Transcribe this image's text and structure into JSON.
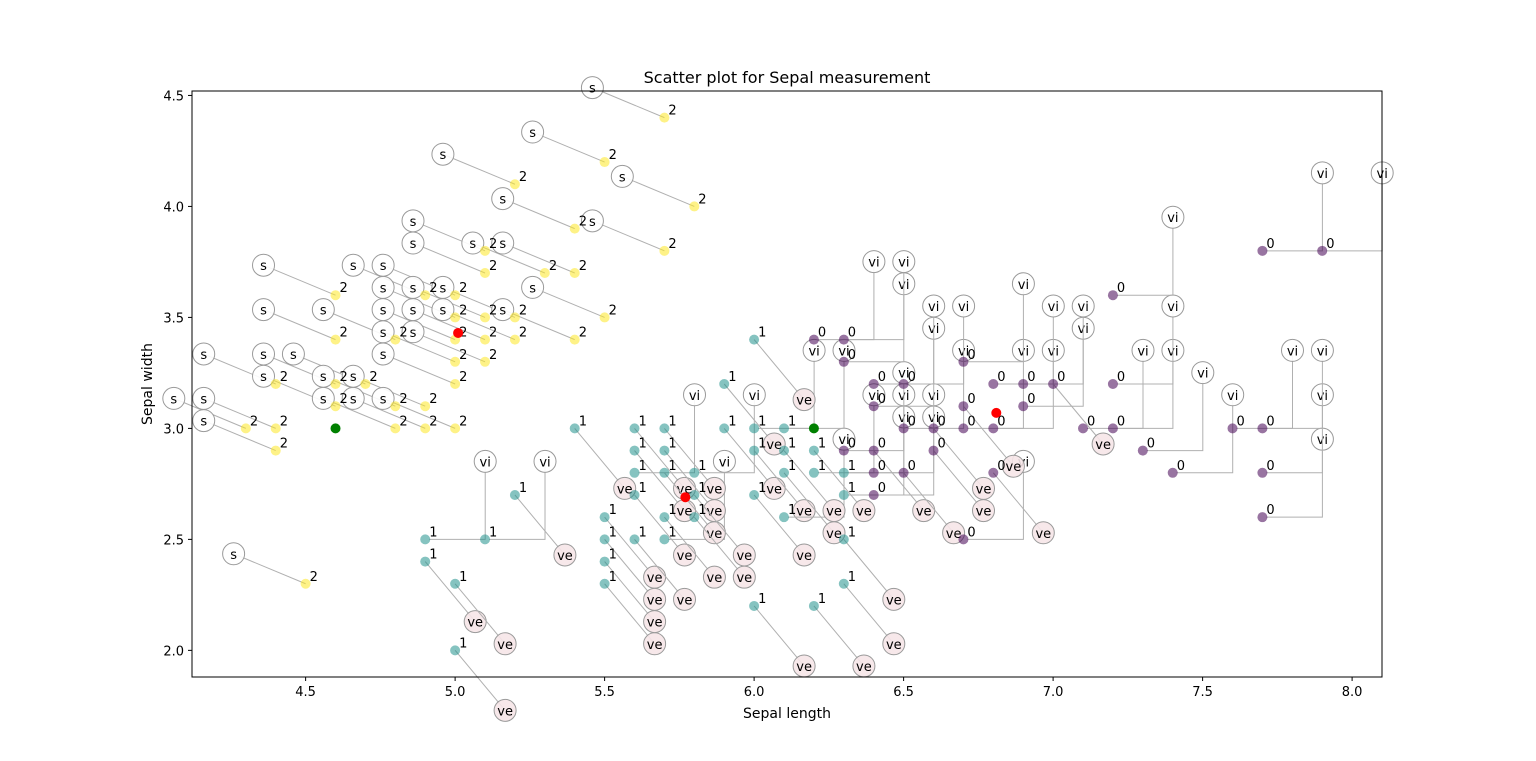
{
  "chart_data": {
    "type": "scatter",
    "title": "Scatter plot for Sepal measurement",
    "xlabel": "Sepal length",
    "ylabel": "Sepal width",
    "xlim": [
      4.12,
      8.1
    ],
    "ylim": [
      1.88,
      4.52
    ],
    "xticks": [
      "4.5",
      "5.0",
      "5.5",
      "6.0",
      "6.5",
      "7.0",
      "7.5",
      "8.0"
    ],
    "yticks": [
      "2.0",
      "2.5",
      "3.0",
      "3.5",
      "4.0",
      "4.5"
    ],
    "grid": false,
    "colors": {
      "cluster_0": "#440154",
      "cluster_1": "#21918c",
      "cluster_2": "#fde725",
      "centroid": "#ff0000",
      "extra_marker": "#008000",
      "setosa_annotation_fill": "#ffffff",
      "versicolor_annotation_fill": "#f6e6e8",
      "virginica_annotation_fill": "#ffffff"
    },
    "cluster_labels": {
      "0": "0",
      "1": "1",
      "2": "2"
    },
    "species_labels": {
      "s": "s",
      "ve": "ve",
      "vi": "vi"
    },
    "points": [
      {
        "x": 4.3,
        "y": 3.0,
        "c": "2",
        "s": "s"
      },
      {
        "x": 4.4,
        "y": 2.9,
        "c": "2",
        "s": "s"
      },
      {
        "x": 4.4,
        "y": 3.0,
        "c": "2",
        "s": "s"
      },
      {
        "x": 4.4,
        "y": 3.2,
        "c": "2",
        "s": "s"
      },
      {
        "x": 4.5,
        "y": 2.3,
        "c": "2",
        "s": "s"
      },
      {
        "x": 4.6,
        "y": 3.1,
        "c": "2",
        "s": "s"
      },
      {
        "x": 4.6,
        "y": 3.2,
        "c": "2",
        "s": "s"
      },
      {
        "x": 4.6,
        "y": 3.4,
        "c": "2",
        "s": "s"
      },
      {
        "x": 4.6,
        "y": 3.6,
        "c": "2",
        "s": "s"
      },
      {
        "x": 4.7,
        "y": 3.2,
        "c": "2",
        "s": "s"
      },
      {
        "x": 4.8,
        "y": 3.0,
        "c": "2",
        "s": "s"
      },
      {
        "x": 4.8,
        "y": 3.1,
        "c": "2",
        "s": "s"
      },
      {
        "x": 4.8,
        "y": 3.4,
        "c": "2",
        "s": "s"
      },
      {
        "x": 4.9,
        "y": 3.0,
        "c": "2",
        "s": "s"
      },
      {
        "x": 4.9,
        "y": 3.1,
        "c": "2",
        "s": "s"
      },
      {
        "x": 4.9,
        "y": 3.6,
        "c": "2",
        "s": "s"
      },
      {
        "x": 5.0,
        "y": 3.0,
        "c": "2",
        "s": "s"
      },
      {
        "x": 5.0,
        "y": 3.2,
        "c": "2",
        "s": "s"
      },
      {
        "x": 5.0,
        "y": 3.3,
        "c": "2",
        "s": "s"
      },
      {
        "x": 5.0,
        "y": 3.4,
        "c": "2",
        "s": "s"
      },
      {
        "x": 5.0,
        "y": 3.5,
        "c": "2",
        "s": "s"
      },
      {
        "x": 5.0,
        "y": 3.6,
        "c": "2",
        "s": "s"
      },
      {
        "x": 5.1,
        "y": 3.3,
        "c": "2",
        "s": "s"
      },
      {
        "x": 5.1,
        "y": 3.4,
        "c": "2",
        "s": "s"
      },
      {
        "x": 5.1,
        "y": 3.5,
        "c": "2",
        "s": "s"
      },
      {
        "x": 5.1,
        "y": 3.7,
        "c": "2",
        "s": "s"
      },
      {
        "x": 5.1,
        "y": 3.8,
        "c": "2",
        "s": "s"
      },
      {
        "x": 5.2,
        "y": 3.4,
        "c": "2",
        "s": "s"
      },
      {
        "x": 5.2,
        "y": 3.5,
        "c": "2",
        "s": "s"
      },
      {
        "x": 5.2,
        "y": 4.1,
        "c": "2",
        "s": "s"
      },
      {
        "x": 5.3,
        "y": 3.7,
        "c": "2",
        "s": "s"
      },
      {
        "x": 5.4,
        "y": 3.4,
        "c": "2",
        "s": "s"
      },
      {
        "x": 5.4,
        "y": 3.7,
        "c": "2",
        "s": "s"
      },
      {
        "x": 5.4,
        "y": 3.9,
        "c": "2",
        "s": "s"
      },
      {
        "x": 5.5,
        "y": 3.5,
        "c": "2",
        "s": "s"
      },
      {
        "x": 5.5,
        "y": 4.2,
        "c": "2",
        "s": "s"
      },
      {
        "x": 5.7,
        "y": 3.8,
        "c": "2",
        "s": "s"
      },
      {
        "x": 5.7,
        "y": 4.4,
        "c": "2",
        "s": "s"
      },
      {
        "x": 5.8,
        "y": 4.0,
        "c": "2",
        "s": "s"
      },
      {
        "x": 4.9,
        "y": 2.4,
        "c": "1",
        "s": "ve"
      },
      {
        "x": 4.9,
        "y": 2.5,
        "c": "1",
        "s": "vi"
      },
      {
        "x": 5.0,
        "y": 2.0,
        "c": "1",
        "s": "ve"
      },
      {
        "x": 5.0,
        "y": 2.3,
        "c": "1",
        "s": "ve"
      },
      {
        "x": 5.1,
        "y": 2.5,
        "c": "1",
        "s": "vi"
      },
      {
        "x": 5.2,
        "y": 2.7,
        "c": "1",
        "s": "ve"
      },
      {
        "x": 5.4,
        "y": 3.0,
        "c": "1",
        "s": "ve"
      },
      {
        "x": 5.5,
        "y": 2.3,
        "c": "1",
        "s": "ve"
      },
      {
        "x": 5.5,
        "y": 2.4,
        "c": "1",
        "s": "ve"
      },
      {
        "x": 5.5,
        "y": 2.5,
        "c": "1",
        "s": "ve"
      },
      {
        "x": 5.5,
        "y": 2.6,
        "c": "1",
        "s": "ve"
      },
      {
        "x": 5.6,
        "y": 2.5,
        "c": "1",
        "s": "ve"
      },
      {
        "x": 5.6,
        "y": 2.7,
        "c": "1",
        "s": "ve"
      },
      {
        "x": 5.6,
        "y": 2.8,
        "c": "1",
        "s": "vi"
      },
      {
        "x": 5.6,
        "y": 2.9,
        "c": "1",
        "s": "ve"
      },
      {
        "x": 5.6,
        "y": 3.0,
        "c": "1",
        "s": "ve"
      },
      {
        "x": 5.7,
        "y": 2.5,
        "c": "1",
        "s": "vi"
      },
      {
        "x": 5.7,
        "y": 2.6,
        "c": "1",
        "s": "ve"
      },
      {
        "x": 5.7,
        "y": 2.8,
        "c": "1",
        "s": "ve"
      },
      {
        "x": 5.7,
        "y": 2.9,
        "c": "1",
        "s": "ve"
      },
      {
        "x": 5.7,
        "y": 3.0,
        "c": "1",
        "s": "ve"
      },
      {
        "x": 5.8,
        "y": 2.6,
        "c": "1",
        "s": "ve"
      },
      {
        "x": 5.8,
        "y": 2.7,
        "c": "1",
        "s": "ve"
      },
      {
        "x": 5.8,
        "y": 2.8,
        "c": "1",
        "s": "vi"
      },
      {
        "x": 5.9,
        "y": 3.0,
        "c": "1",
        "s": "ve"
      },
      {
        "x": 5.9,
        "y": 3.2,
        "c": "1",
        "s": "ve"
      },
      {
        "x": 6.0,
        "y": 2.2,
        "c": "1",
        "s": "ve"
      },
      {
        "x": 6.0,
        "y": 2.7,
        "c": "1",
        "s": "ve"
      },
      {
        "x": 6.0,
        "y": 2.9,
        "c": "1",
        "s": "ve"
      },
      {
        "x": 6.0,
        "y": 3.0,
        "c": "1",
        "s": "vi"
      },
      {
        "x": 6.0,
        "y": 3.4,
        "c": "1",
        "s": "ve"
      },
      {
        "x": 6.1,
        "y": 2.6,
        "c": "1",
        "s": "vi"
      },
      {
        "x": 6.1,
        "y": 2.8,
        "c": "1",
        "s": "ve"
      },
      {
        "x": 6.1,
        "y": 2.9,
        "c": "1",
        "s": "ve"
      },
      {
        "x": 6.1,
        "y": 3.0,
        "c": "1",
        "s": "vi"
      },
      {
        "x": 6.2,
        "y": 2.2,
        "c": "1",
        "s": "ve"
      },
      {
        "x": 6.2,
        "y": 2.8,
        "c": "1",
        "s": "vi"
      },
      {
        "x": 6.2,
        "y": 2.9,
        "c": "1",
        "s": "ve"
      },
      {
        "x": 6.3,
        "y": 2.3,
        "c": "1",
        "s": "ve"
      },
      {
        "x": 6.3,
        "y": 2.5,
        "c": "1",
        "s": "ve"
      },
      {
        "x": 6.3,
        "y": 2.7,
        "c": "1",
        "s": "vi"
      },
      {
        "x": 6.3,
        "y": 2.8,
        "c": "1",
        "s": "vi"
      },
      {
        "x": 6.2,
        "y": 3.4,
        "c": "0",
        "s": "vi"
      },
      {
        "x": 6.3,
        "y": 2.9,
        "c": "0",
        "s": "vi"
      },
      {
        "x": 6.3,
        "y": 3.3,
        "c": "0",
        "s": "vi"
      },
      {
        "x": 6.3,
        "y": 3.4,
        "c": "0",
        "s": "vi"
      },
      {
        "x": 6.4,
        "y": 2.7,
        "c": "0",
        "s": "vi"
      },
      {
        "x": 6.4,
        "y": 2.8,
        "c": "0",
        "s": "vi"
      },
      {
        "x": 6.4,
        "y": 2.9,
        "c": "0",
        "s": "ve"
      },
      {
        "x": 6.4,
        "y": 3.1,
        "c": "0",
        "s": "vi"
      },
      {
        "x": 6.4,
        "y": 3.2,
        "c": "0",
        "s": "vi"
      },
      {
        "x": 6.5,
        "y": 2.8,
        "c": "0",
        "s": "ve"
      },
      {
        "x": 6.5,
        "y": 3.0,
        "c": "0",
        "s": "vi"
      },
      {
        "x": 6.5,
        "y": 3.2,
        "c": "0",
        "s": "vi"
      },
      {
        "x": 6.6,
        "y": 2.9,
        "c": "0",
        "s": "ve"
      },
      {
        "x": 6.6,
        "y": 3.0,
        "c": "0",
        "s": "ve"
      },
      {
        "x": 6.7,
        "y": 2.5,
        "c": "0",
        "s": "vi"
      },
      {
        "x": 6.7,
        "y": 3.0,
        "c": "0",
        "s": "vi"
      },
      {
        "x": 6.7,
        "y": 3.1,
        "c": "0",
        "s": "ve"
      },
      {
        "x": 6.7,
        "y": 3.3,
        "c": "0",
        "s": "vi"
      },
      {
        "x": 6.8,
        "y": 2.8,
        "c": "0",
        "s": "ve"
      },
      {
        "x": 6.8,
        "y": 3.0,
        "c": "0",
        "s": "vi"
      },
      {
        "x": 6.8,
        "y": 3.2,
        "c": "0",
        "s": "vi"
      },
      {
        "x": 6.9,
        "y": 3.1,
        "c": "0",
        "s": "vi"
      },
      {
        "x": 6.9,
        "y": 3.2,
        "c": "0",
        "s": "vi"
      },
      {
        "x": 7.0,
        "y": 3.2,
        "c": "0",
        "s": "ve"
      },
      {
        "x": 7.1,
        "y": 3.0,
        "c": "0",
        "s": "vi"
      },
      {
        "x": 7.2,
        "y": 3.0,
        "c": "0",
        "s": "vi"
      },
      {
        "x": 7.2,
        "y": 3.2,
        "c": "0",
        "s": "vi"
      },
      {
        "x": 7.2,
        "y": 3.6,
        "c": "0",
        "s": "vi"
      },
      {
        "x": 7.3,
        "y": 2.9,
        "c": "0",
        "s": "vi"
      },
      {
        "x": 7.4,
        "y": 2.8,
        "c": "0",
        "s": "vi"
      },
      {
        "x": 7.6,
        "y": 3.0,
        "c": "0",
        "s": "vi"
      },
      {
        "x": 7.7,
        "y": 2.6,
        "c": "0",
        "s": "vi"
      },
      {
        "x": 7.7,
        "y": 2.8,
        "c": "0",
        "s": "vi"
      },
      {
        "x": 7.7,
        "y": 3.0,
        "c": "0",
        "s": "vi"
      },
      {
        "x": 7.7,
        "y": 3.8,
        "c": "0",
        "s": "vi"
      },
      {
        "x": 7.9,
        "y": 3.8,
        "c": "0",
        "s": "vi"
      }
    ],
    "centroids": [
      {
        "x": 5.01,
        "y": 3.43
      },
      {
        "x": 5.77,
        "y": 2.69
      },
      {
        "x": 6.81,
        "y": 3.07
      }
    ],
    "extra_markers": [
      {
        "x": 4.6,
        "y": 3.0
      },
      {
        "x": 6.2,
        "y": 3.0
      }
    ]
  }
}
